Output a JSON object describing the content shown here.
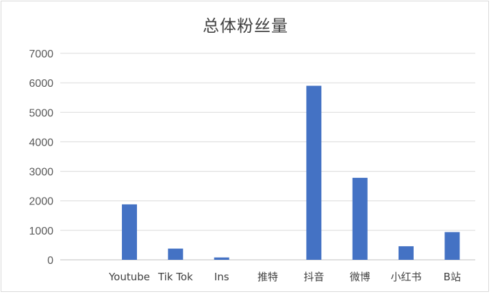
{
  "chart_data": {
    "type": "bar",
    "title": "总体粉丝量",
    "categories": [
      "",
      "Youtube",
      "Tik Tok",
      "Ins",
      "推特",
      "抖音",
      "微博",
      "小红书",
      "B站"
    ],
    "series": [
      {
        "values": [
          0,
          1880,
          380,
          80,
          0,
          5900,
          2780,
          460,
          940
        ]
      }
    ],
    "ylim": [
      0,
      7000
    ],
    "yticks": [
      0,
      1000,
      2000,
      3000,
      4000,
      5000,
      6000,
      7000
    ],
    "grid": true,
    "legend": "none",
    "colors": {
      "bar": "#4472C4",
      "grid": "#d9d9d9",
      "axis": "#bfbfbf"
    }
  }
}
